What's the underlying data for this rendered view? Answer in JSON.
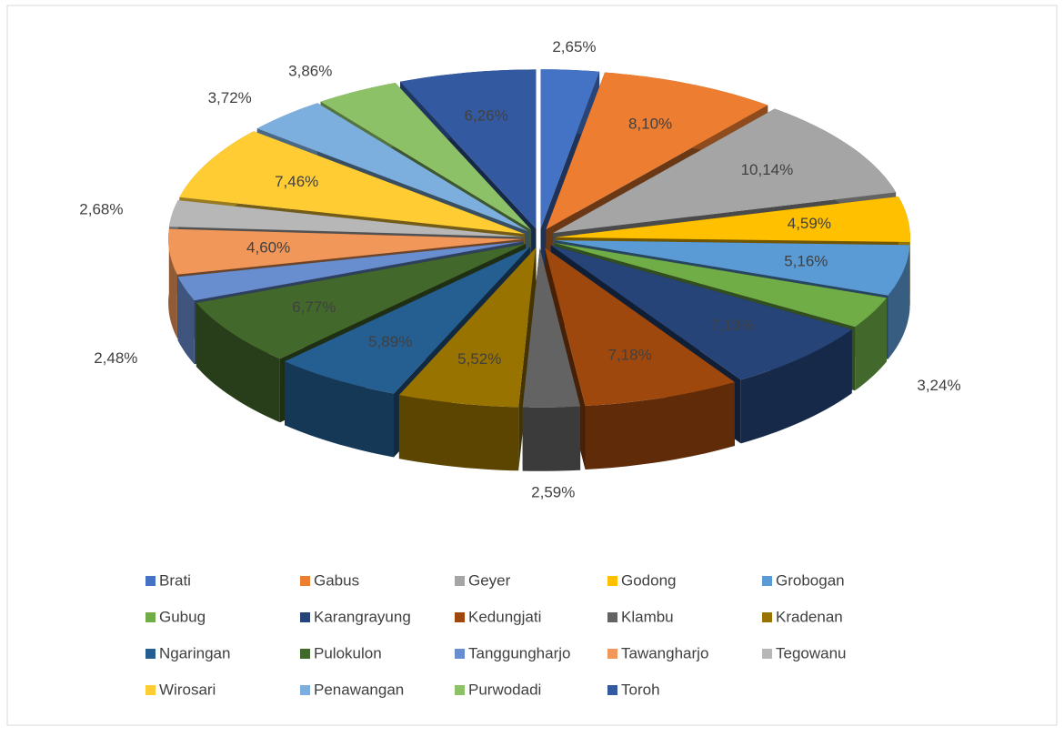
{
  "chart_data": {
    "type": "pie3d",
    "categories": [
      "Brati",
      "Gabus",
      "Geyer",
      "Godong",
      "Grobogan",
      "Gubug",
      "Karangrayung",
      "Kedungjati",
      "Klambu",
      "Kradenan",
      "Ngaringan",
      "Pulokulon",
      "Tanggungharjo",
      "Tawangharjo",
      "Tegowanu",
      "Wirosari",
      "Penawangan",
      "Purwodadi",
      "Toroh"
    ],
    "values": [
      2.65,
      8.1,
      10.14,
      4.59,
      5.16,
      3.24,
      7.13,
      7.18,
      2.59,
      5.52,
      5.89,
      6.77,
      2.48,
      4.6,
      2.68,
      7.46,
      3.72,
      3.86,
      6.26
    ],
    "value_labels": [
      "2,65%",
      "8,10%",
      "10,14%",
      "4,59%",
      "5,16%",
      "3,24%",
      "7,13%",
      "7,18%",
      "2,59%",
      "5,52%",
      "5,89%",
      "6,77%",
      "2,48%",
      "4,60%",
      "2,68%",
      "7,46%",
      "3,72%",
      "3,86%",
      "6,26%"
    ],
    "colors": [
      "#4472c4",
      "#ed7d31",
      "#a5a5a5",
      "#ffc000",
      "#5b9bd5",
      "#70ad47",
      "#264478",
      "#9e480e",
      "#636363",
      "#997300",
      "#255e91",
      "#43682b",
      "#698ed0",
      "#f1975a",
      "#b7b7b7",
      "#ffcd33",
      "#7cafdd",
      "#8cc168",
      "#335aa1"
    ],
    "legend": "bottom"
  }
}
